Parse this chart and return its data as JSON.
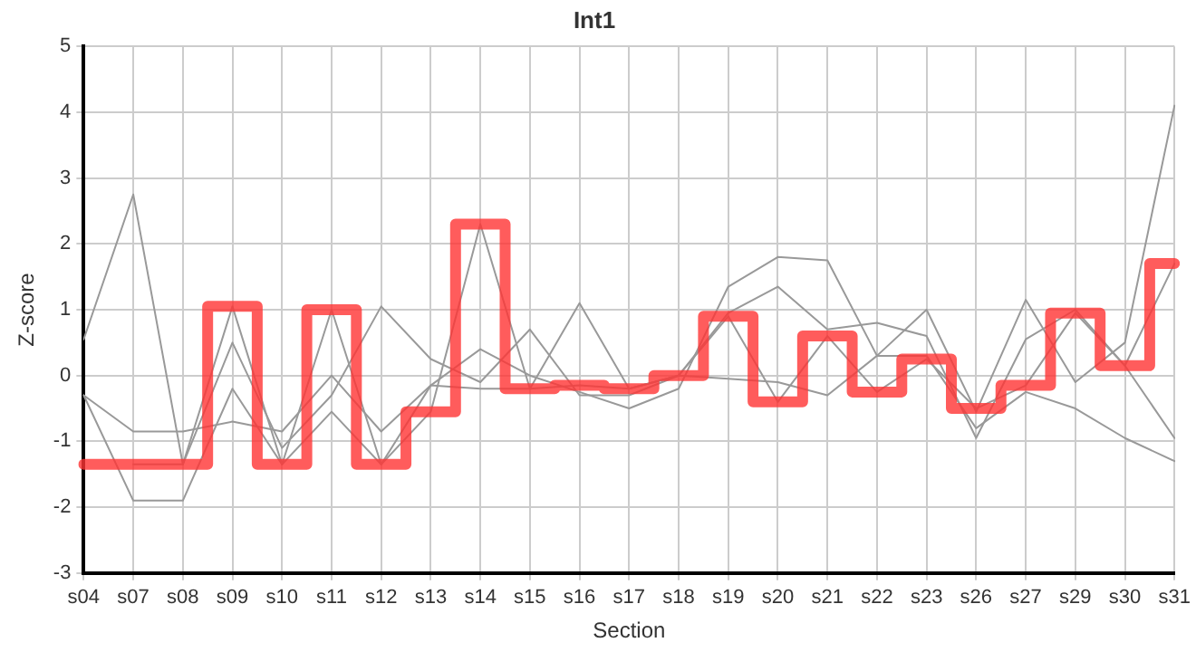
{
  "chart_data": {
    "type": "line",
    "title": "Int1",
    "xlabel": "Section",
    "ylabel": "Z-score",
    "categories": [
      "s04",
      "s07",
      "s08",
      "s09",
      "s10",
      "s11",
      "s12",
      "s13",
      "s14",
      "s15",
      "s16",
      "s17",
      "s18",
      "s19",
      "s20",
      "s21",
      "s22",
      "s23",
      "s26",
      "s27",
      "s29",
      "s30",
      "s31"
    ],
    "series": [
      {
        "color": "#999999",
        "values": [
          0.55,
          2.75,
          -1.35,
          0.5,
          -1.1,
          -0.3,
          1.05,
          0.25,
          -0.1,
          0.7,
          -0.3,
          -0.3,
          0.0,
          0.95,
          1.35,
          0.7,
          0.8,
          0.6,
          -0.95,
          0.55,
          1.0,
          0.15,
          -0.95
        ]
      },
      {
        "color": "#999999",
        "values": [
          -0.3,
          -0.85,
          -0.85,
          -0.7,
          -0.85,
          0.0,
          -0.85,
          -0.15,
          0.4,
          0.0,
          -0.25,
          -0.5,
          -0.2,
          1.35,
          1.8,
          1.75,
          0.3,
          1.0,
          -0.55,
          1.15,
          -0.1,
          0.5,
          4.1
        ]
      },
      {
        "color": "#999999",
        "values": [
          -0.3,
          -1.9,
          -1.9,
          -0.2,
          -1.35,
          -0.55,
          -1.35,
          -0.15,
          -0.2,
          -0.2,
          1.1,
          -0.2,
          0.0,
          -0.05,
          -0.1,
          -0.3,
          0.3,
          0.3,
          -0.8,
          -0.25,
          -0.5,
          -0.95,
          -1.3
        ]
      },
      {
        "color": "#999999",
        "values": [
          null,
          -1.35,
          -1.35,
          1.05,
          -1.35,
          1.0,
          -1.35,
          -0.55,
          2.3,
          -0.2,
          -0.15,
          -0.2,
          0.0,
          0.9,
          -0.4,
          0.6,
          -0.25,
          0.25,
          -0.5,
          -0.15,
          0.95,
          0.15,
          1.7
        ]
      },
      {
        "type": "step",
        "color": "#ff3333",
        "values": [
          -1.35,
          -1.35,
          -1.35,
          1.05,
          -1.35,
          1.0,
          -1.35,
          -0.55,
          2.3,
          -0.2,
          -0.15,
          -0.2,
          0.0,
          0.9,
          -0.4,
          0.6,
          -0.25,
          0.25,
          -0.5,
          -0.15,
          0.95,
          0.15,
          1.7
        ]
      }
    ],
    "ylim": [
      -3,
      5
    ],
    "yticks": [
      -3,
      -2,
      -1,
      0,
      1,
      2,
      3,
      4,
      5
    ],
    "grid": true,
    "legend": false,
    "marker": "none"
  }
}
